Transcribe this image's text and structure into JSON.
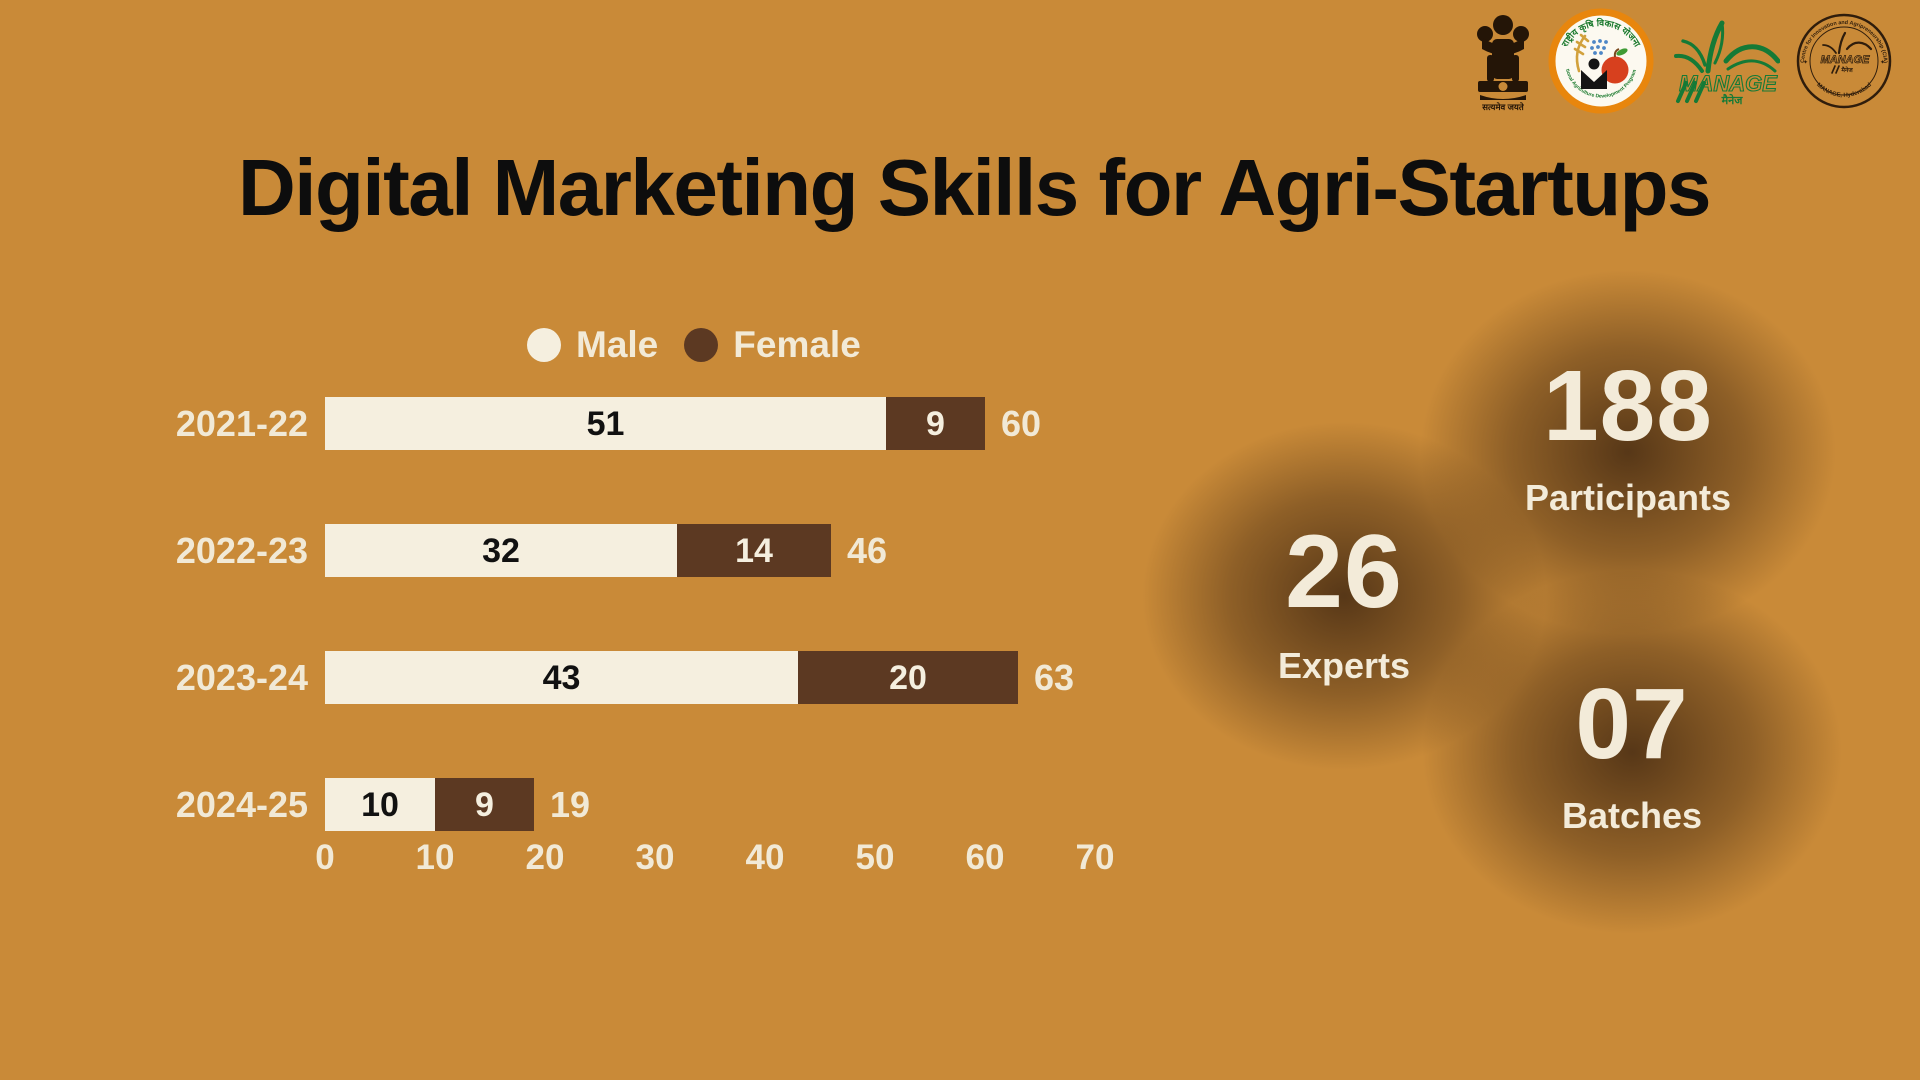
{
  "title": "Digital Marketing Skills for Agri-Startups",
  "colors": {
    "background": "#C98A38",
    "male_bar": "#F5EFDF",
    "female_bar": "#5C3922",
    "cream_text": "#F1E9D6",
    "bar_number_on_male": "#111111",
    "bar_number_on_female": "#F5EFDF",
    "title_text": "#0D0D0D",
    "glow": "#3E2510"
  },
  "logos": [
    {
      "name": "national-emblem-of-india",
      "caption": "सत्यमेव जयते"
    },
    {
      "name": "rkvy-logo",
      "text_top": "राष्ट्रीय कृषि विकास योजना",
      "text_bottom": "National Agriculture Development Programme"
    },
    {
      "name": "manage-logo",
      "text": "MANAGE",
      "subtext": "मैनेज"
    },
    {
      "name": "cia-manage-seal",
      "text_top": "Centre for Innovation and Agripreneurship (CIA)",
      "text_bottom": "MANAGE, Hyderabad",
      "text_center": "MANAGE",
      "text_center_sub": "मैनेज"
    }
  ],
  "chart_data": {
    "type": "bar",
    "orientation": "horizontal",
    "stacked": true,
    "title": "Digital Marketing Skills for Agri-Startups",
    "categories": [
      "2021-22",
      "2022-23",
      "2023-24",
      "2024-25"
    ],
    "series": [
      {
        "name": "Male",
        "color": "#F5EFDF",
        "values": [
          51,
          32,
          43,
          10
        ]
      },
      {
        "name": "Female",
        "color": "#5C3922",
        "values": [
          9,
          14,
          20,
          9
        ]
      }
    ],
    "totals": [
      60,
      46,
      63,
      19
    ],
    "x_ticks": [
      0,
      10,
      20,
      30,
      40,
      50,
      60,
      70
    ],
    "xlim": [
      0,
      70
    ],
    "grid": false,
    "legend_position": "top"
  },
  "stats": [
    {
      "value": "188",
      "label": "Participants"
    },
    {
      "value": "26",
      "label": "Experts"
    },
    {
      "value": "07",
      "label": "Batches"
    }
  ]
}
